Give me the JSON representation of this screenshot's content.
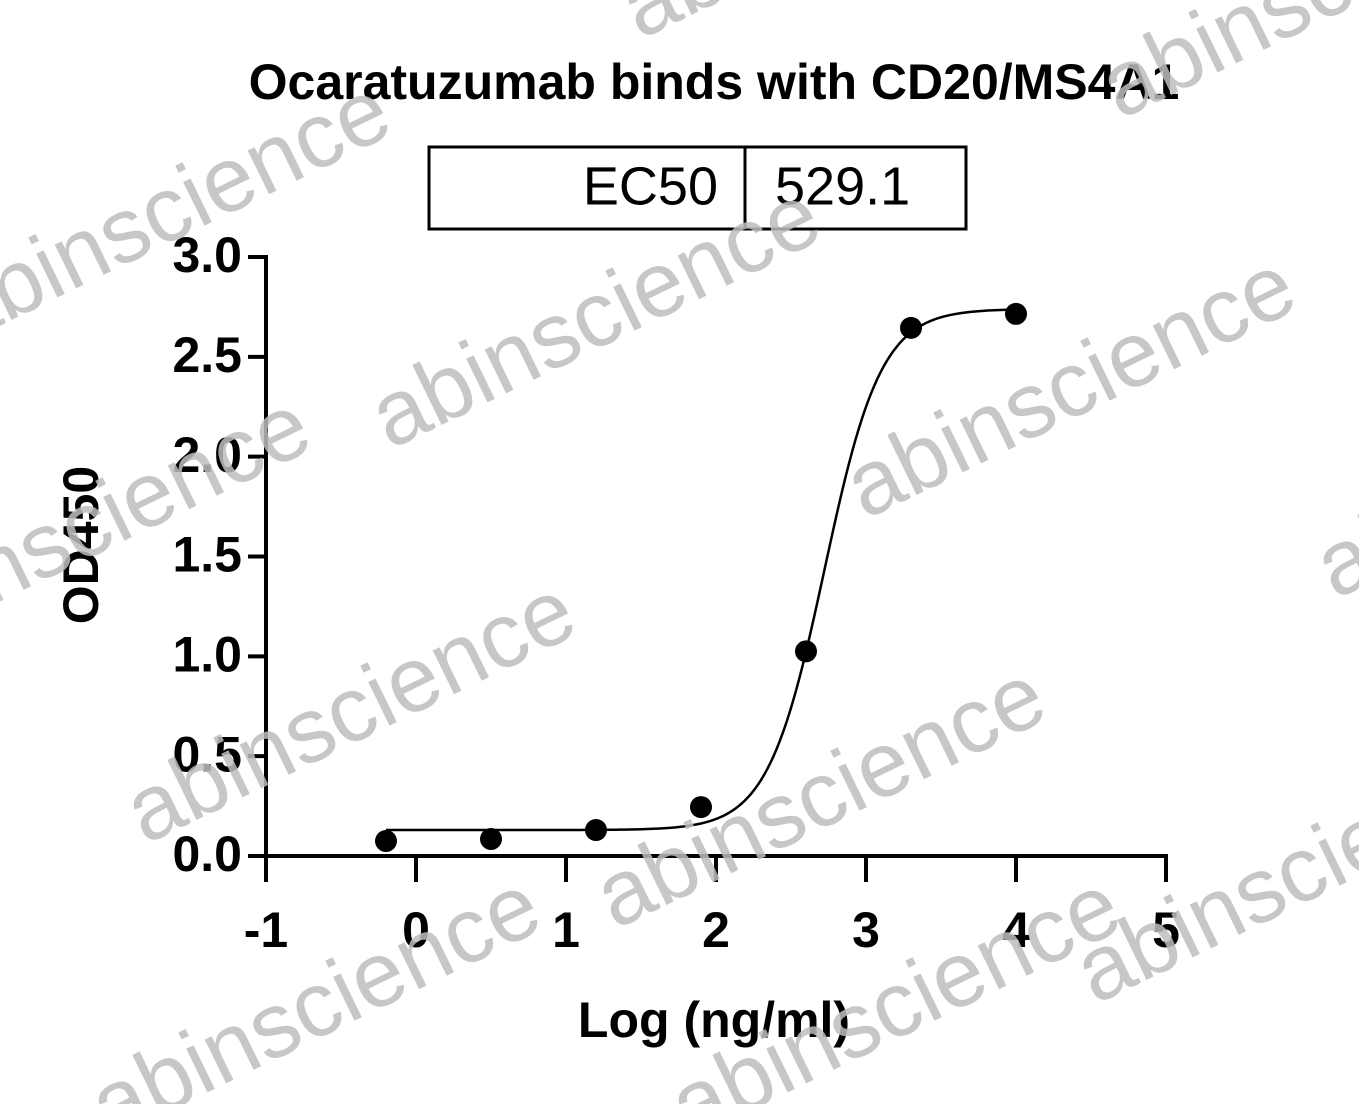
{
  "chart_data": {
    "type": "scatter",
    "title": "Ocaratuzumab binds with CD20/MS4A1",
    "xlabel": "Log (ng/ml)",
    "ylabel": "OD450",
    "table": {
      "label": "EC50",
      "value": 529.1
    },
    "watermark": "abinscience",
    "x": [
      -0.2,
      0.5,
      1.2,
      1.9,
      2.6,
      3.3,
      4.0
    ],
    "values": [
      0.075,
      0.085,
      0.13,
      0.245,
      1.025,
      2.645,
      2.715
    ],
    "color": "#000000",
    "fit": {
      "bottom": 0.13,
      "top": 2.74,
      "hill": 2.3
    },
    "xlim": [
      -1,
      5
    ],
    "xticks": [
      -1,
      0,
      1,
      2,
      3,
      4,
      5
    ],
    "ylim": [
      0,
      3
    ],
    "yticks": [
      {
        "value": 0,
        "label": "0.0"
      },
      {
        "value": 0.5,
        "label": "0.5"
      },
      {
        "value": 1,
        "label": "1.0"
      },
      {
        "value": 1.5,
        "label": "1.5"
      },
      {
        "value": 2,
        "label": "2.0"
      },
      {
        "value": 2.5,
        "label": "2.5"
      },
      {
        "value": 3,
        "label": "3.0"
      }
    ]
  }
}
